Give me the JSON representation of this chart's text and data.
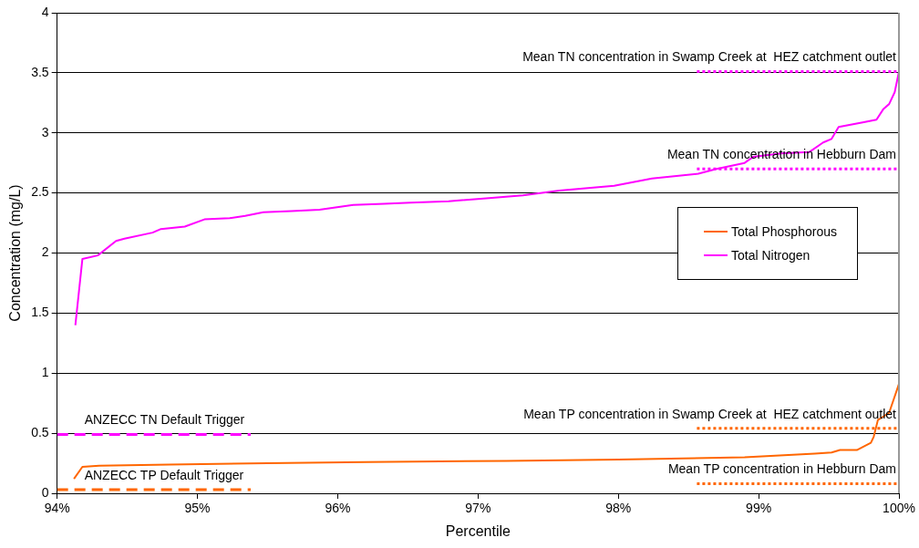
{
  "chart_data": {
    "type": "line",
    "xlabel": "Percentile",
    "ylabel": "Concentration (mg/L)",
    "xlim": [
      94,
      100
    ],
    "ylim": [
      0,
      4
    ],
    "xticks": [
      {
        "value": 94,
        "label": "94%"
      },
      {
        "value": 95,
        "label": "95%"
      },
      {
        "value": 96,
        "label": "96%"
      },
      {
        "value": 97,
        "label": "97%"
      },
      {
        "value": 98,
        "label": "98%"
      },
      {
        "value": 99,
        "label": "99%"
      },
      {
        "value": 100,
        "label": "100%"
      }
    ],
    "yticks": [
      0,
      0.5,
      1,
      1.5,
      2,
      2.5,
      3,
      3.5,
      4
    ],
    "grid": "y",
    "legend": "right",
    "marker": "none",
    "series": [
      {
        "name": "Total Phosphorous",
        "color": "#ff6600",
        "x": [
          94.12,
          94.18,
          94.3,
          94.8,
          95.5,
          96.2,
          97.2,
          98,
          98.9,
          99.4,
          99.52,
          99.58,
          99.7,
          99.8,
          99.82,
          99.85,
          99.93,
          100
        ],
        "values": [
          0.12,
          0.22,
          0.23,
          0.24,
          0.25,
          0.26,
          0.27,
          0.28,
          0.3,
          0.33,
          0.34,
          0.36,
          0.36,
          0.42,
          0.47,
          0.61,
          0.67,
          0.91
        ]
      },
      {
        "name": "Total Nitrogen",
        "color": "#ff00ff",
        "x": [
          94.13,
          94.18,
          94.29,
          94.42,
          94.48,
          94.68,
          94.74,
          94.91,
          95.05,
          95.23,
          95.34,
          95.47,
          95.67,
          95.87,
          96.11,
          96.33,
          96.52,
          96.79,
          97.1,
          97.32,
          97.58,
          97.97,
          98.24,
          98.57,
          98.7,
          98.9,
          98.96,
          99.16,
          99.36,
          99.46,
          99.52,
          99.57,
          99.75,
          99.84,
          99.89,
          99.93,
          99.97,
          100
        ],
        "values": [
          1.4,
          1.95,
          1.98,
          2.1,
          2.12,
          2.17,
          2.2,
          2.22,
          2.28,
          2.29,
          2.31,
          2.34,
          2.35,
          2.36,
          2.4,
          2.41,
          2.42,
          2.43,
          2.46,
          2.48,
          2.52,
          2.56,
          2.62,
          2.66,
          2.7,
          2.75,
          2.8,
          2.83,
          2.84,
          2.92,
          2.95,
          3.05,
          3.09,
          3.11,
          3.2,
          3.24,
          3.34,
          3.51
        ]
      },
      {
        "color": "#ff00ff",
        "line_style": "dashed",
        "x": [
          94,
          95.38
        ],
        "values": [
          0.49,
          0.49
        ]
      },
      {
        "color": "#ff6600",
        "line_style": "dashed",
        "x": [
          94,
          95.38
        ],
        "values": [
          0.03,
          0.03
        ]
      },
      {
        "color": "#ff00ff",
        "line_style": "dotted",
        "x": [
          98.56,
          100
        ],
        "values": [
          3.51,
          3.51
        ]
      },
      {
        "color": "#ff00ff",
        "line_style": "dotted",
        "x": [
          98.56,
          100
        ],
        "values": [
          2.7,
          2.7
        ]
      },
      {
        "color": "#ff6600",
        "line_style": "dotted",
        "x": [
          98.56,
          100
        ],
        "values": [
          0.54,
          0.54
        ]
      },
      {
        "color": "#ff6600",
        "line_style": "dotted",
        "x": [
          98.56,
          100
        ],
        "values": [
          0.08,
          0.08
        ]
      }
    ],
    "annotations": [
      "ANZECC TN Default Trigger",
      "ANZECC TP Default Trigger",
      "Mean TN concentration in Swamp Creek at  HEZ catchment outlet",
      "Mean TN concentration in Hebburn Dam",
      "Mean TP concentration in Swamp Creek at  HEZ catchment outlet",
      "Mean TP concentration in Hebburn Dam"
    ]
  }
}
